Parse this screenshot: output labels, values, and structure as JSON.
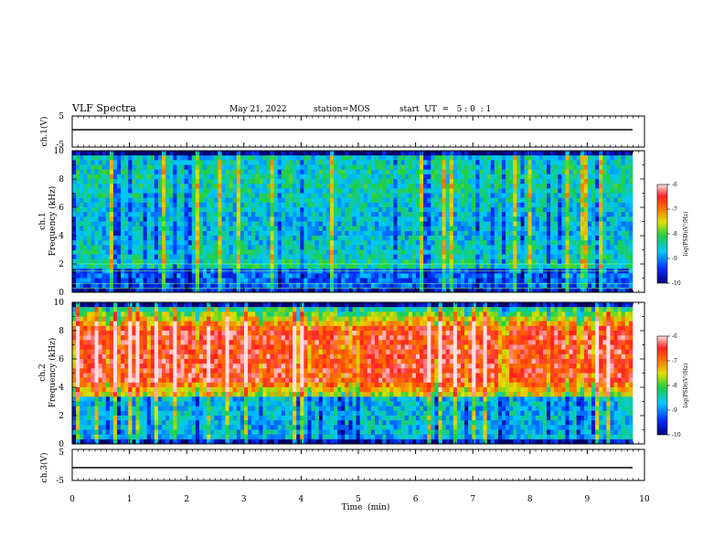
{
  "header": {
    "title": "VLF Spectra",
    "date": "May 21, 2022",
    "station": "station=MOS",
    "start": "start  UT  =   5 : 0  : 1"
  },
  "colors": {
    "trace": "#000000",
    "spectrogram_background": "#000070"
  },
  "chart_data": [
    {
      "type": "line",
      "panel": "ch1-waveform",
      "ylabel": "ch.1(V)",
      "ylim": [
        -5,
        5
      ],
      "yticks": [
        "5",
        "-5"
      ],
      "series": [
        {
          "x": [
            0,
            9.85
          ],
          "values": [
            0,
            0
          ]
        }
      ]
    },
    {
      "type": "heatmap",
      "panel": "ch1-spectrogram",
      "ylabel": "ch.1\nFrequency (kHz)",
      "ylim": [
        0,
        10
      ],
      "yticks": [
        "0",
        "2",
        "4",
        "6",
        "8",
        "10"
      ],
      "colorbar": {
        "label": "log(PSD)(V²/Hz)",
        "ticks": [
          "-6",
          "-7",
          "-8",
          "-9",
          "-10"
        ],
        "range": [
          -10,
          -6
        ]
      },
      "band_khz": [
        0.5,
        9.5
      ],
      "mean_level": -8.6
    },
    {
      "type": "heatmap",
      "panel": "ch2-spectrogram",
      "ylabel": "ch.2\nFrequency (kHz)",
      "ylim": [
        0,
        10
      ],
      "yticks": [
        "0",
        "2",
        "4",
        "6",
        "8",
        "10"
      ],
      "colorbar": {
        "label": "log(PSD)(V²/Hz)",
        "ticks": [
          "-6",
          "-7",
          "-8",
          "-9",
          "-10"
        ],
        "range": [
          -10,
          -6
        ]
      },
      "band_khz": [
        0.3,
        9.8
      ],
      "peak_band_khz": [
        4.5,
        8.0
      ],
      "peak_level": -6.9
    },
    {
      "type": "line",
      "panel": "ch3-waveform",
      "ylabel": "ch.3(V)",
      "ylim": [
        -5,
        5
      ],
      "yticks": [
        "5",
        "-5"
      ],
      "series": [
        {
          "x": [
            0,
            9.85
          ],
          "values": [
            0,
            0
          ]
        }
      ]
    }
  ],
  "xaxis": {
    "label": "Time  (min)",
    "xlim": [
      0,
      10
    ],
    "ticks": [
      "0",
      "1",
      "2",
      "3",
      "4",
      "5",
      "6",
      "7",
      "8",
      "9",
      "10"
    ]
  }
}
